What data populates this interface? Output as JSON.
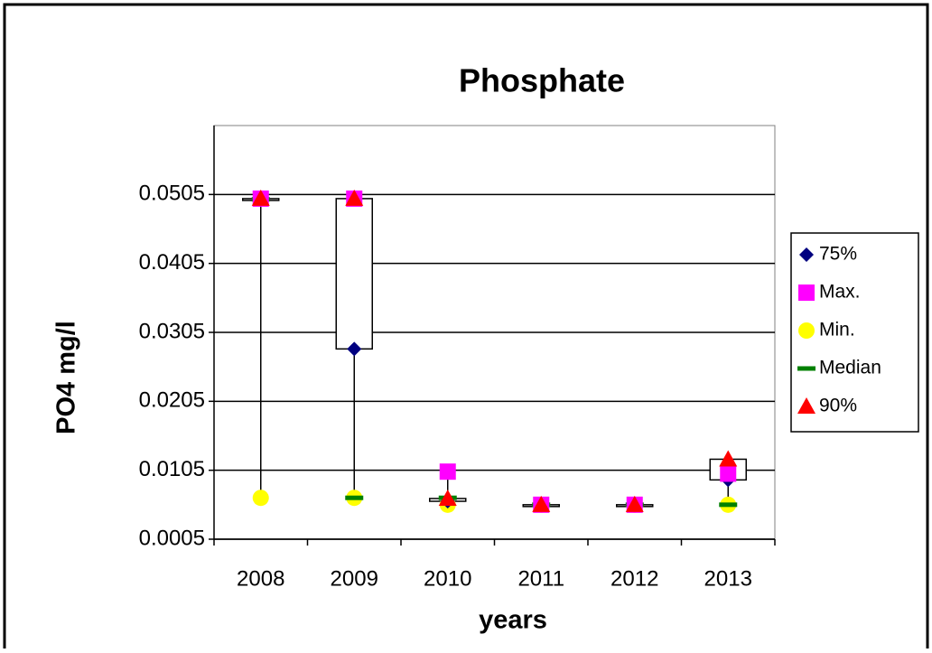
{
  "chart_data": {
    "type": "boxplot",
    "title": "Phosphate",
    "x_label": "years",
    "y_label": "PO4 mg/l",
    "categories": [
      "2008",
      "2009",
      "2010",
      "2011",
      "2012",
      "2013"
    ],
    "series": [
      {
        "name": "75%",
        "color": "#000080",
        "values": [
          0.0499,
          0.0281,
          0.006,
          0.0055,
          0.0055,
          0.0091
        ]
      },
      {
        "name": "Max.",
        "color": "#ff00ff",
        "values": [
          0.0499,
          0.0499,
          0.0103,
          0.0055,
          0.0055,
          0.01
        ]
      },
      {
        "name": "Min.",
        "color": "#ffff00",
        "values": [
          0.0065,
          0.0065,
          0.0055,
          0.0055,
          0.0055,
          0.0055
        ]
      },
      {
        "name": "Median",
        "color": "#008000",
        "values": [
          0.0498,
          0.0065,
          0.0065,
          0.0055,
          0.0055,
          0.0055
        ]
      },
      {
        "name": "90%",
        "color": "#ff0000",
        "values": [
          0.0499,
          0.0499,
          0.0064,
          0.0055,
          0.0055,
          0.0121
        ]
      }
    ],
    "ylim": [
      0.0005,
      0.0605
    ],
    "yticks": [
      0.0005,
      0.0105,
      0.0205,
      0.0305,
      0.0405,
      0.0505
    ],
    "grid": true,
    "legend": "right"
  }
}
